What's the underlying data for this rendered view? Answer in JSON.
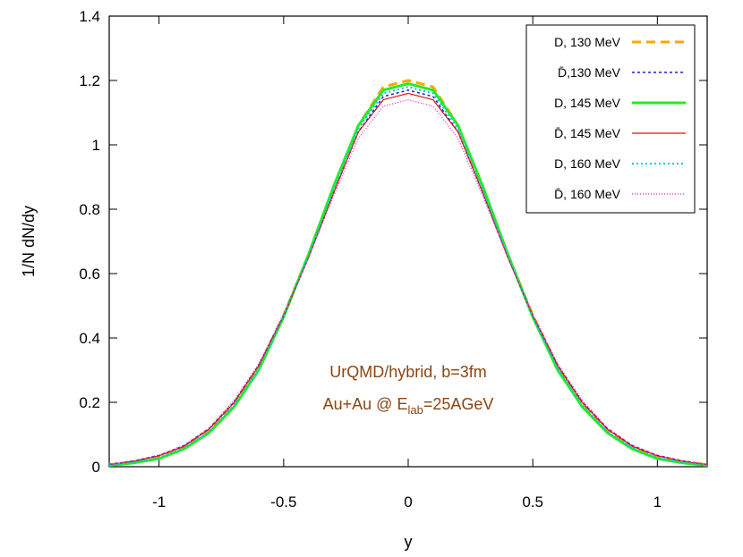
{
  "chart_data": {
    "type": "line",
    "xlabel": "y",
    "ylabel": "1/N dN/dy",
    "xlim": [
      -1.2,
      1.2
    ],
    "ylim": [
      0,
      1.4
    ],
    "xticks": [
      -1,
      -0.5,
      0,
      0.5,
      1
    ],
    "xtick_labels": [
      "-1",
      "-0.5",
      "0",
      "0.5",
      "1"
    ],
    "yticks": [
      0,
      0.2,
      0.4,
      0.6,
      0.8,
      1,
      1.2,
      1.4
    ],
    "ytick_labels": [
      "0",
      "0.2",
      "0.4",
      "0.6",
      "0.8",
      "1",
      "1.2",
      "1.4"
    ],
    "grid": false,
    "legend_position": "top-right",
    "annotation": {
      "line1": "UrQMD/hybrid, b=3fm",
      "line2_prefix": "Au+Au @ E",
      "line2_sub": "lab",
      "line2_suffix": "=25AGeV",
      "color": "#8b4513"
    },
    "x": [
      -1.2,
      -1.1,
      -1.0,
      -0.9,
      -0.8,
      -0.7,
      -0.6,
      -0.5,
      -0.4,
      -0.3,
      -0.2,
      -0.1,
      0.0,
      0.1,
      0.2,
      0.3,
      0.4,
      0.5,
      0.6,
      0.7,
      0.8,
      0.9,
      1.0,
      1.1,
      1.2
    ],
    "series": [
      {
        "name": "D, 130 MeV",
        "color": "#ffa500",
        "dash": "10,6",
        "width": 3,
        "values": [
          0.006,
          0.016,
          0.03,
          0.06,
          0.112,
          0.195,
          0.31,
          0.47,
          0.66,
          0.86,
          1.06,
          1.18,
          1.2,
          1.18,
          1.06,
          0.86,
          0.66,
          0.47,
          0.31,
          0.195,
          0.112,
          0.06,
          0.03,
          0.016,
          0.006
        ]
      },
      {
        "name": "D̄,130 MeV",
        "color": "#1f1fd0",
        "dash": "3,3",
        "width": 1.5,
        "values": [
          0.007,
          0.018,
          0.035,
          0.065,
          0.118,
          0.2,
          0.315,
          0.47,
          0.65,
          0.85,
          1.04,
          1.15,
          1.17,
          1.15,
          1.04,
          0.85,
          0.65,
          0.47,
          0.315,
          0.2,
          0.118,
          0.065,
          0.035,
          0.018,
          0.007
        ]
      },
      {
        "name": "D, 145 MeV",
        "color": "#22ee22",
        "dash": "",
        "width": 3,
        "values": [
          0.004,
          0.012,
          0.025,
          0.055,
          0.105,
          0.185,
          0.3,
          0.465,
          0.66,
          0.87,
          1.06,
          1.17,
          1.19,
          1.17,
          1.06,
          0.87,
          0.66,
          0.465,
          0.3,
          0.185,
          0.105,
          0.055,
          0.025,
          0.012,
          0.004
        ]
      },
      {
        "name": "D̄, 145 MeV",
        "color": "#dd1111",
        "dash": "",
        "width": 1.2,
        "values": [
          0.006,
          0.017,
          0.034,
          0.063,
          0.116,
          0.198,
          0.313,
          0.468,
          0.65,
          0.85,
          1.04,
          1.14,
          1.16,
          1.14,
          1.04,
          0.85,
          0.65,
          0.468,
          0.313,
          0.198,
          0.116,
          0.063,
          0.034,
          0.017,
          0.006
        ]
      },
      {
        "name": "D, 160 MeV",
        "color": "#00c8e6",
        "dash": "2,3",
        "width": 2,
        "values": [
          0.005,
          0.014,
          0.028,
          0.058,
          0.108,
          0.19,
          0.305,
          0.465,
          0.655,
          0.86,
          1.05,
          1.16,
          1.18,
          1.16,
          1.05,
          0.86,
          0.655,
          0.465,
          0.305,
          0.19,
          0.108,
          0.058,
          0.028,
          0.014,
          0.005
        ]
      },
      {
        "name": "D̄, 160 MeV",
        "color": "#dd22dd",
        "dash": "1,2",
        "width": 1.2,
        "values": [
          0.007,
          0.019,
          0.036,
          0.067,
          0.12,
          0.205,
          0.32,
          0.475,
          0.65,
          0.84,
          1.02,
          1.12,
          1.14,
          1.12,
          1.02,
          0.84,
          0.65,
          0.475,
          0.32,
          0.205,
          0.12,
          0.067,
          0.036,
          0.019,
          0.007
        ]
      }
    ]
  }
}
